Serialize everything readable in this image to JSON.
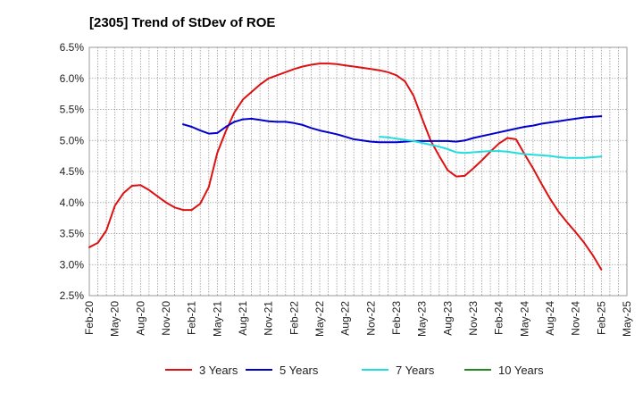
{
  "chart_data": {
    "type": "line",
    "title": "[2305]  Trend of StDev of ROE",
    "xlabel": "",
    "ylabel": "",
    "x_ticks": [
      "Feb-20",
      "May-20",
      "Aug-20",
      "Nov-20",
      "Feb-21",
      "May-21",
      "Aug-21",
      "Nov-21",
      "Feb-22",
      "May-22",
      "Aug-22",
      "Nov-22",
      "Feb-23",
      "May-23",
      "Aug-23",
      "Nov-23",
      "Feb-24",
      "May-24",
      "Aug-24",
      "Nov-24",
      "Feb-25",
      "May-25"
    ],
    "y_ticks": [
      "2.5%",
      "3.0%",
      "3.5%",
      "4.0%",
      "4.5%",
      "5.0%",
      "5.5%",
      "6.0%",
      "6.5%"
    ],
    "ylim": [
      2.5,
      6.5
    ],
    "x_start": "2020-02",
    "grid": true,
    "legend_position": "bottom",
    "series": [
      {
        "name": "3 Years",
        "color": "#dd1111",
        "x": [
          "2020-02",
          "2020-03",
          "2020-04",
          "2020-05",
          "2020-06",
          "2020-07",
          "2020-08",
          "2020-09",
          "2020-10",
          "2020-11",
          "2020-12",
          "2021-01",
          "2021-02",
          "2021-03",
          "2021-04",
          "2021-05",
          "2021-06",
          "2021-07",
          "2021-08",
          "2021-09",
          "2021-10",
          "2021-11",
          "2021-12",
          "2022-01",
          "2022-02",
          "2022-03",
          "2022-04",
          "2022-05",
          "2022-06",
          "2022-07",
          "2022-08",
          "2022-09",
          "2022-10",
          "2022-11",
          "2022-12",
          "2023-01",
          "2023-02",
          "2023-03",
          "2023-04",
          "2023-05",
          "2023-06",
          "2023-07",
          "2023-08",
          "2023-09",
          "2023-10",
          "2023-11",
          "2023-12",
          "2024-01",
          "2024-02",
          "2024-03",
          "2024-04",
          "2024-05",
          "2024-06",
          "2024-07",
          "2024-08",
          "2024-09",
          "2024-10",
          "2024-11",
          "2024-12",
          "2025-01",
          "2025-02"
        ],
        "values": [
          3.28,
          3.35,
          3.55,
          3.95,
          4.15,
          4.27,
          4.28,
          4.2,
          4.1,
          4.0,
          3.92,
          3.88,
          3.88,
          3.98,
          4.25,
          4.8,
          5.15,
          5.45,
          5.66,
          5.78,
          5.9,
          6.0,
          6.05,
          6.1,
          6.15,
          6.19,
          6.22,
          6.24,
          6.24,
          6.23,
          6.21,
          6.19,
          6.17,
          6.15,
          6.13,
          6.1,
          6.05,
          5.95,
          5.72,
          5.35,
          5.0,
          4.75,
          4.52,
          4.42,
          4.43,
          4.55,
          4.68,
          4.82,
          4.95,
          5.04,
          5.02,
          4.78,
          4.55,
          4.3,
          4.06,
          3.85,
          3.68,
          3.52,
          3.35,
          3.15,
          2.92
        ]
      },
      {
        "name": "5 Years",
        "color": "#0000cc",
        "x": [
          "2021-01",
          "2021-02",
          "2021-03",
          "2021-04",
          "2021-05",
          "2021-06",
          "2021-07",
          "2021-08",
          "2021-09",
          "2021-10",
          "2021-11",
          "2021-12",
          "2022-01",
          "2022-02",
          "2022-03",
          "2022-04",
          "2022-05",
          "2022-06",
          "2022-07",
          "2022-08",
          "2022-09",
          "2022-10",
          "2022-11",
          "2022-12",
          "2023-01",
          "2023-02",
          "2023-03",
          "2023-04",
          "2023-05",
          "2023-06",
          "2023-07",
          "2023-08",
          "2023-09",
          "2023-10",
          "2023-11",
          "2023-12",
          "2024-01",
          "2024-02",
          "2024-03",
          "2024-04",
          "2024-05",
          "2024-06",
          "2024-07",
          "2024-08",
          "2024-09",
          "2024-10",
          "2024-11",
          "2024-12",
          "2025-01",
          "2025-02"
        ],
        "values": [
          5.26,
          5.22,
          5.16,
          5.11,
          5.12,
          5.22,
          5.3,
          5.34,
          5.35,
          5.33,
          5.31,
          5.3,
          5.3,
          5.28,
          5.25,
          5.2,
          5.16,
          5.13,
          5.1,
          5.06,
          5.02,
          5.0,
          4.98,
          4.97,
          4.97,
          4.97,
          4.98,
          4.99,
          4.99,
          4.99,
          4.99,
          4.99,
          4.98,
          5.0,
          5.04,
          5.07,
          5.1,
          5.13,
          5.16,
          5.19,
          5.22,
          5.24,
          5.27,
          5.29,
          5.31,
          5.33,
          5.35,
          5.37,
          5.38,
          5.39
        ]
      },
      {
        "name": "7 Years",
        "color": "#22dddd",
        "x": [
          "2022-12",
          "2023-01",
          "2023-02",
          "2023-03",
          "2023-04",
          "2023-05",
          "2023-06",
          "2023-07",
          "2023-08",
          "2023-09",
          "2023-10",
          "2023-11",
          "2023-12",
          "2024-01",
          "2024-02",
          "2024-03",
          "2024-04",
          "2024-05",
          "2024-06",
          "2024-07",
          "2024-08",
          "2024-09",
          "2024-10",
          "2024-11",
          "2024-12",
          "2025-01",
          "2025-02"
        ],
        "values": [
          5.06,
          5.05,
          5.03,
          5.01,
          4.99,
          4.96,
          4.93,
          4.9,
          4.86,
          4.81,
          4.8,
          4.81,
          4.82,
          4.83,
          4.83,
          4.82,
          4.8,
          4.78,
          4.77,
          4.76,
          4.75,
          4.73,
          4.72,
          4.72,
          4.72,
          4.73,
          4.74
        ]
      },
      {
        "name": "10 Years",
        "color": "#228822",
        "x": [],
        "values": []
      }
    ]
  }
}
